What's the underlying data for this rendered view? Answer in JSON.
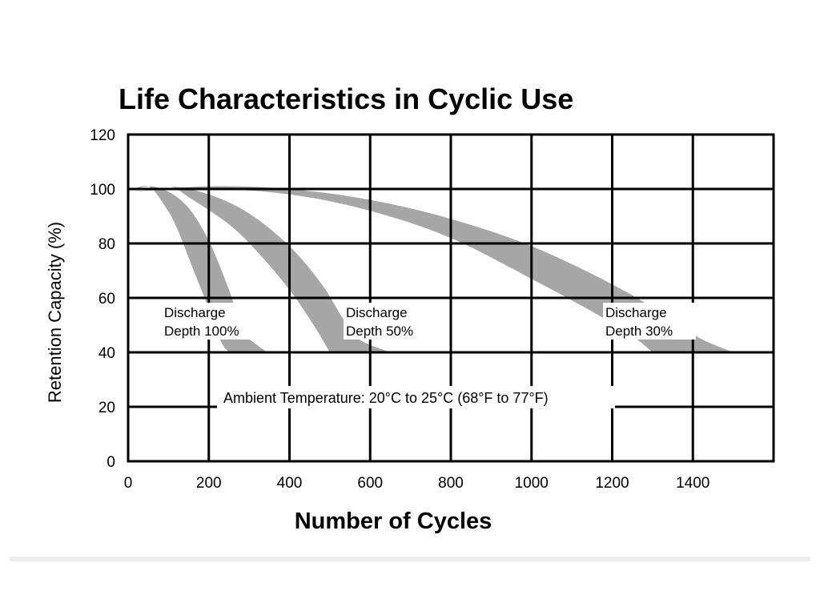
{
  "chart_data": {
    "type": "area",
    "title": "Life Characteristics in Cyclic Use",
    "xlabel": "Number of Cycles",
    "ylabel": "Retention Capacity (%)",
    "xlim": [
      0,
      1600
    ],
    "ylim": [
      0,
      120
    ],
    "x_ticks": [
      0,
      200,
      400,
      600,
      800,
      1000,
      1200,
      1400
    ],
    "y_ticks": [
      0,
      20,
      40,
      60,
      80,
      100,
      120
    ],
    "grid": true,
    "annotation": "Ambient Temperature: 20°C to 25°C (68°F to 77°F)",
    "colors": {
      "band": "#a6a6a6",
      "grid": "#000000",
      "text": "#000000"
    },
    "series": [
      {
        "name": "Discharge Depth 100%",
        "label_lines": [
          "Discharge",
          "Depth 100%"
        ],
        "upper": [
          [
            0,
            99
          ],
          [
            50,
            101
          ],
          [
            100,
            99
          ],
          [
            150,
            93
          ],
          [
            200,
            81
          ],
          [
            250,
            63
          ],
          [
            280,
            49
          ],
          [
            300,
            45
          ],
          [
            345,
            40
          ]
        ],
        "lower": [
          [
            0,
            99
          ],
          [
            50,
            101
          ],
          [
            90,
            94
          ],
          [
            120,
            86
          ],
          [
            160,
            71
          ],
          [
            200,
            56
          ],
          [
            230,
            44
          ],
          [
            250,
            40
          ]
        ]
      },
      {
        "name": "Discharge Depth 50%",
        "label_lines": [
          "Discharge",
          "Depth 50%"
        ],
        "upper": [
          [
            0,
            99
          ],
          [
            100,
            101
          ],
          [
            200,
            98
          ],
          [
            300,
            91
          ],
          [
            400,
            79
          ],
          [
            480,
            65
          ],
          [
            530,
            53
          ],
          [
            570,
            45
          ],
          [
            650,
            40
          ]
        ],
        "lower": [
          [
            0,
            99
          ],
          [
            100,
            101
          ],
          [
            150,
            97
          ],
          [
            250,
            87
          ],
          [
            320,
            77
          ],
          [
            400,
            63
          ],
          [
            460,
            50
          ],
          [
            500,
            40
          ]
        ]
      },
      {
        "name": "Discharge Depth 30%",
        "label_lines": [
          "Discharge",
          "Depth 30%"
        ],
        "upper": [
          [
            0,
            99
          ],
          [
            200,
            101
          ],
          [
            400,
            100
          ],
          [
            600,
            96
          ],
          [
            800,
            89
          ],
          [
            1000,
            79
          ],
          [
            1200,
            65
          ],
          [
            1350,
            52
          ],
          [
            1420,
            45
          ],
          [
            1500,
            40
          ]
        ],
        "lower": [
          [
            0,
            99
          ],
          [
            200,
            100
          ],
          [
            400,
            98
          ],
          [
            600,
            92
          ],
          [
            800,
            82
          ],
          [
            1000,
            67
          ],
          [
            1150,
            55
          ],
          [
            1250,
            46
          ],
          [
            1300,
            40
          ]
        ]
      }
    ]
  }
}
